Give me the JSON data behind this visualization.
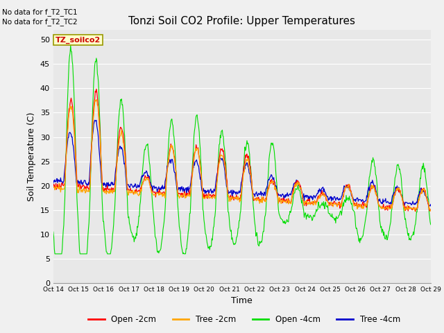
{
  "title": "Tonzi Soil CO2 Profile: Upper Temperatures",
  "xlabel": "Time",
  "ylabel": "Soil Temperature (C)",
  "ylim": [
    0,
    52
  ],
  "yticks": [
    0,
    5,
    10,
    15,
    20,
    25,
    30,
    35,
    40,
    45,
    50
  ],
  "xtick_labels": [
    "Oct 14",
    "Oct 15",
    "Oct 16",
    "Oct 17",
    "Oct 18",
    "Oct 19",
    "Oct 20",
    "Oct 21",
    "Oct 22",
    "Oct 23",
    "Oct 24",
    "Oct 25",
    "Oct 26",
    "Oct 27",
    "Oct 28",
    "Oct 29"
  ],
  "note_line1": "No data for f_T2_TC1",
  "note_line2": "No data for f_T2_TC2",
  "legend_label": "TZ_soilco2",
  "plot_bg_color": "#e8e8e8",
  "fig_bg_color": "#f0f0f0",
  "grid_color": "#ffffff",
  "colors": {
    "open_2cm": "#ff0000",
    "tree_2cm": "#ffa500",
    "open_4cm": "#00dd00",
    "tree_4cm": "#0000cc"
  },
  "legend_labels": [
    "Open -2cm",
    "Tree -2cm",
    "Open -4cm",
    "Tree -4cm"
  ]
}
